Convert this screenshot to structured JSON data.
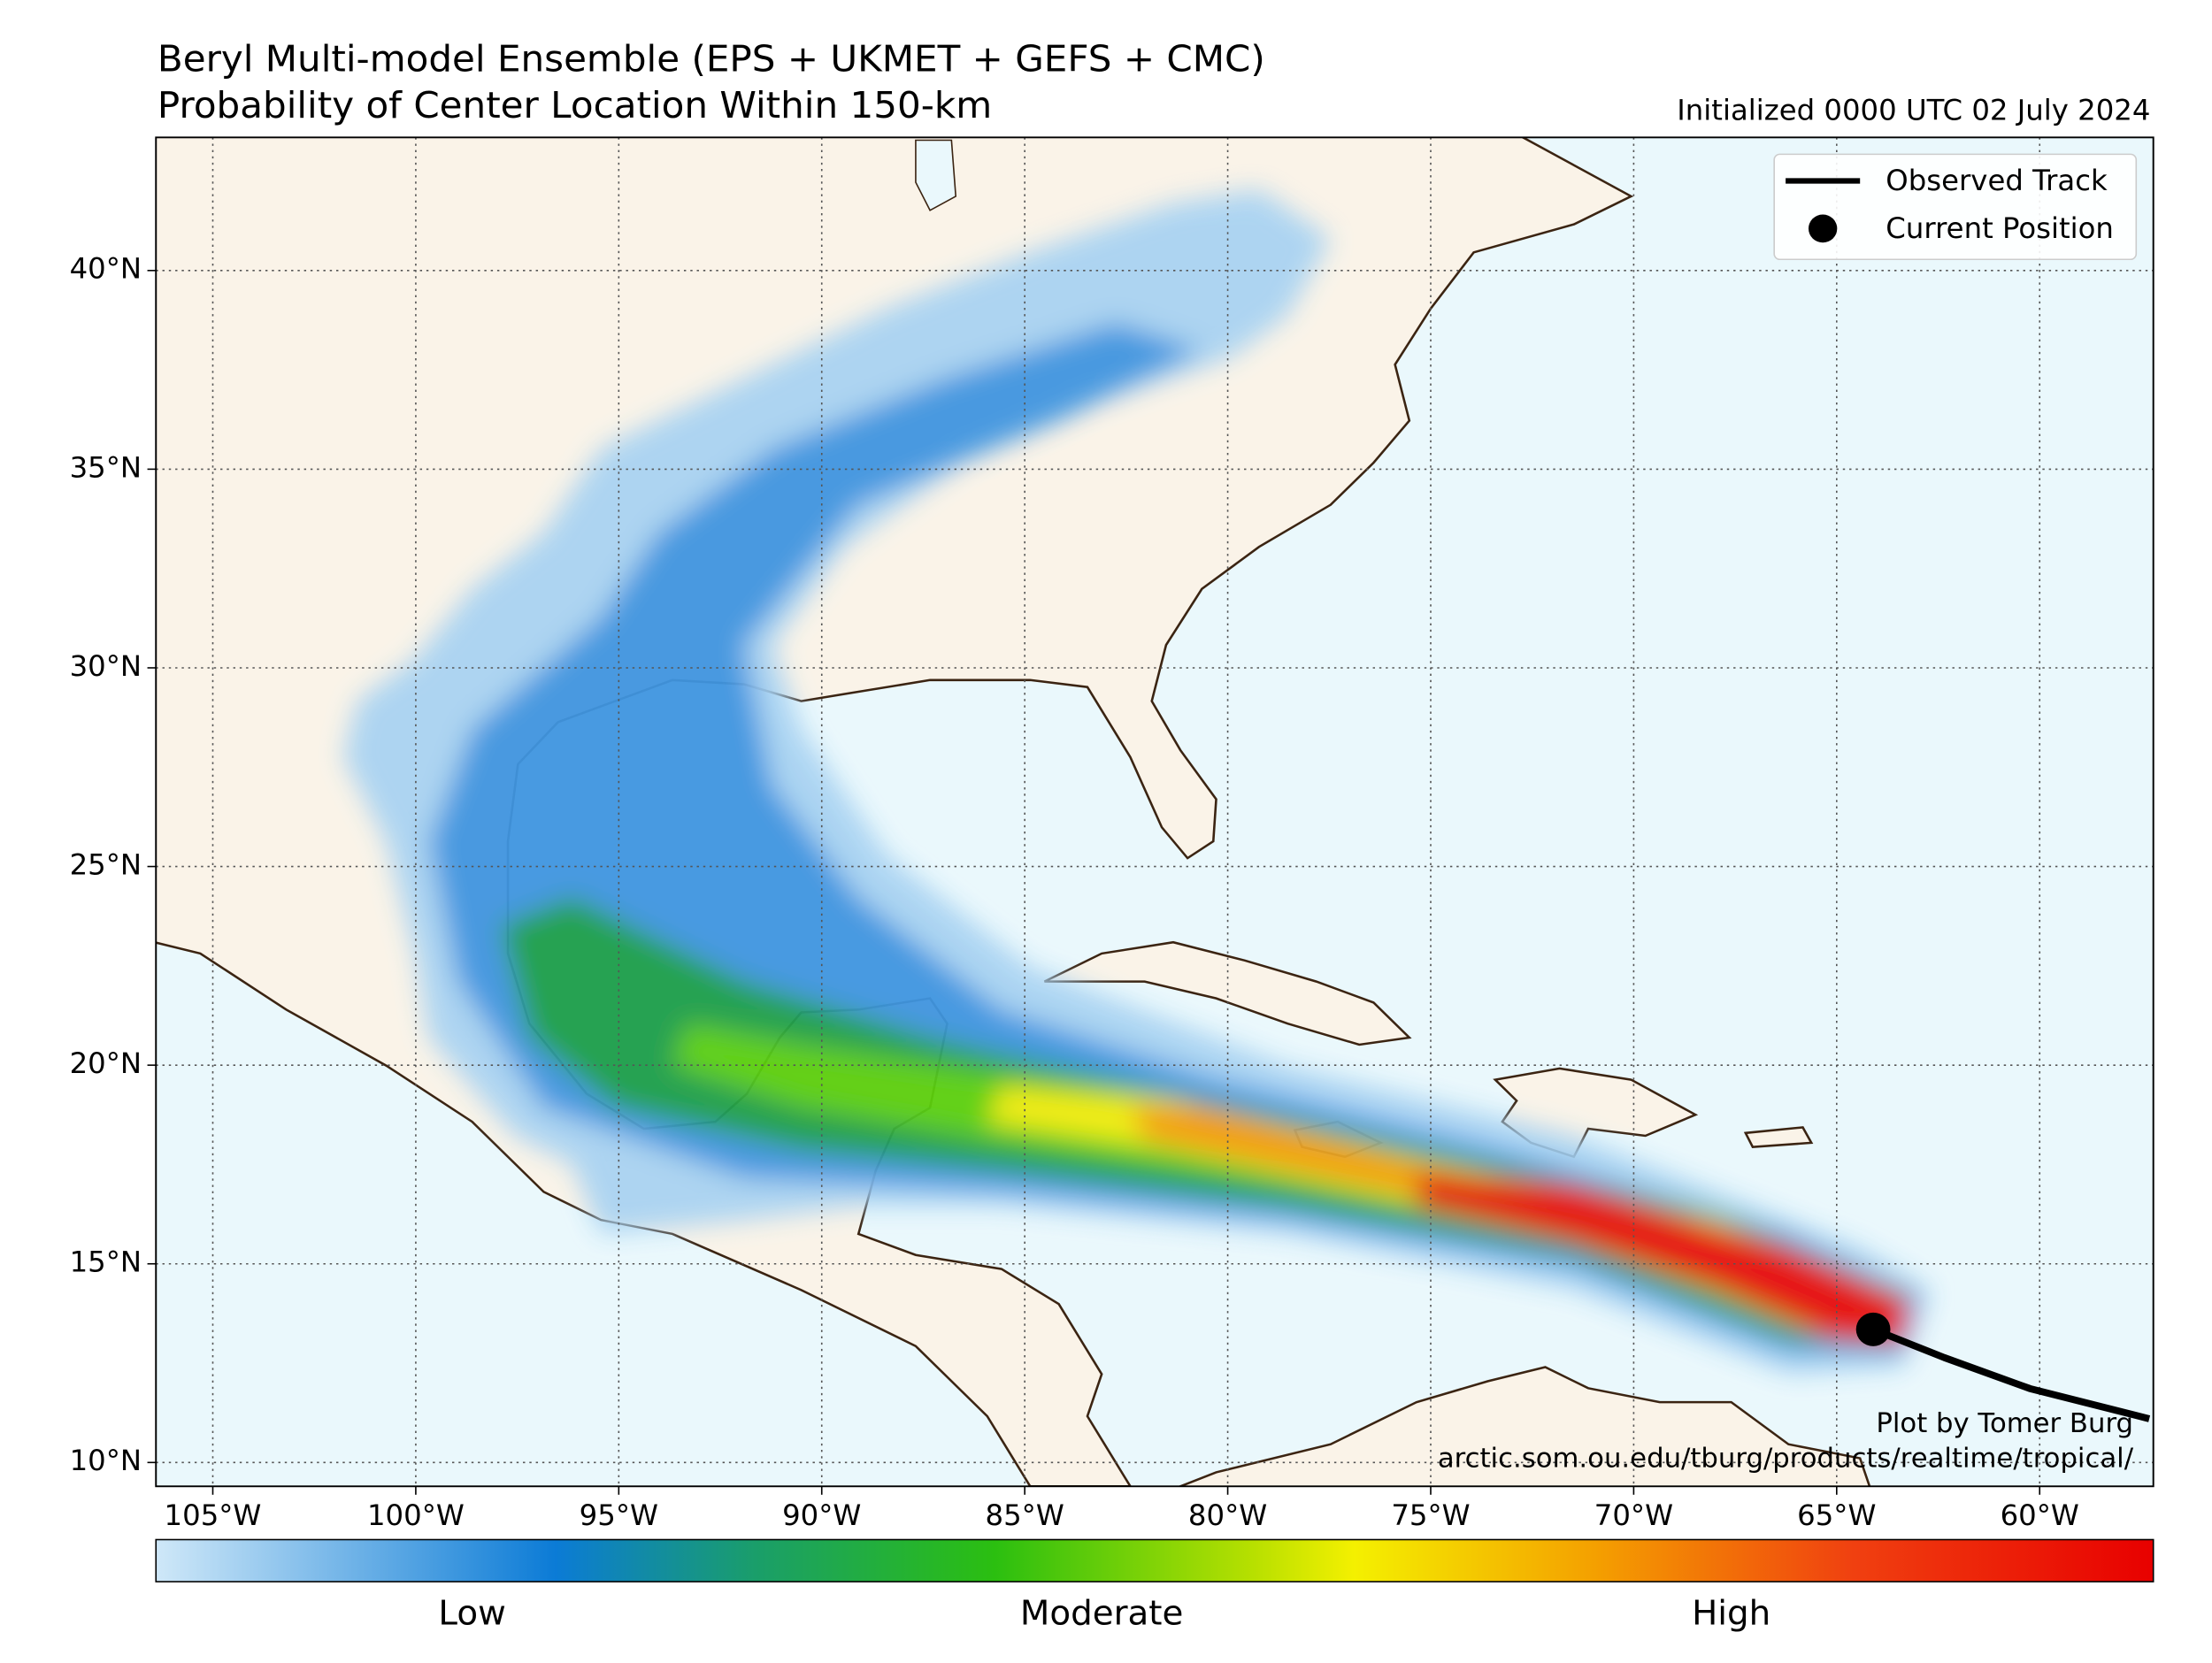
{
  "title": "Beryl Multi-model Ensemble (EPS + UKMET + GEFS + CMC)",
  "subtitle": "Probability of Center Location Within 150-km",
  "initialized": "Initialized 0000 UTC 02 July 2024",
  "map": {
    "xlim": [
      -106.4,
      -57.2
    ],
    "ylim": [
      9.4,
      43.35
    ],
    "xticks": [
      {
        "value": -105,
        "label": "105°W"
      },
      {
        "value": -100,
        "label": "100°W"
      },
      {
        "value": -95,
        "label": "95°W"
      },
      {
        "value": -90,
        "label": "90°W"
      },
      {
        "value": -85,
        "label": "85°W"
      },
      {
        "value": -80,
        "label": "80°W"
      },
      {
        "value": -75,
        "label": "75°W"
      },
      {
        "value": -70,
        "label": "70°W"
      },
      {
        "value": -65,
        "label": "65°W"
      },
      {
        "value": -60,
        "label": "60°W"
      }
    ],
    "yticks": [
      {
        "value": 10,
        "label": "10°N"
      },
      {
        "value": 15,
        "label": "15°N"
      },
      {
        "value": 20,
        "label": "20°N"
      },
      {
        "value": 25,
        "label": "25°N"
      },
      {
        "value": 30,
        "label": "30°N"
      },
      {
        "value": 35,
        "label": "35°N"
      },
      {
        "value": 40,
        "label": "40°N"
      }
    ],
    "grid": true
  },
  "legend": {
    "entries": [
      "Observed Track",
      "Current Position"
    ]
  },
  "observed_track": {
    "lon": [
      -64.1,
      -62.35,
      -60.24,
      -57.3
    ],
    "lat": [
      13.35,
      12.64,
      11.86,
      11.1
    ],
    "color": "#000000"
  },
  "current_position": {
    "lon": -64.1,
    "lat": 13.35,
    "color": "#000000"
  },
  "colorbar": {
    "labels": [
      "Low",
      "Moderate",
      "High"
    ]
  },
  "credit": [
    "Plot by Tomer Burg",
    "arctic.som.ou.edu/tburg/products/realtime/tropical/"
  ]
}
